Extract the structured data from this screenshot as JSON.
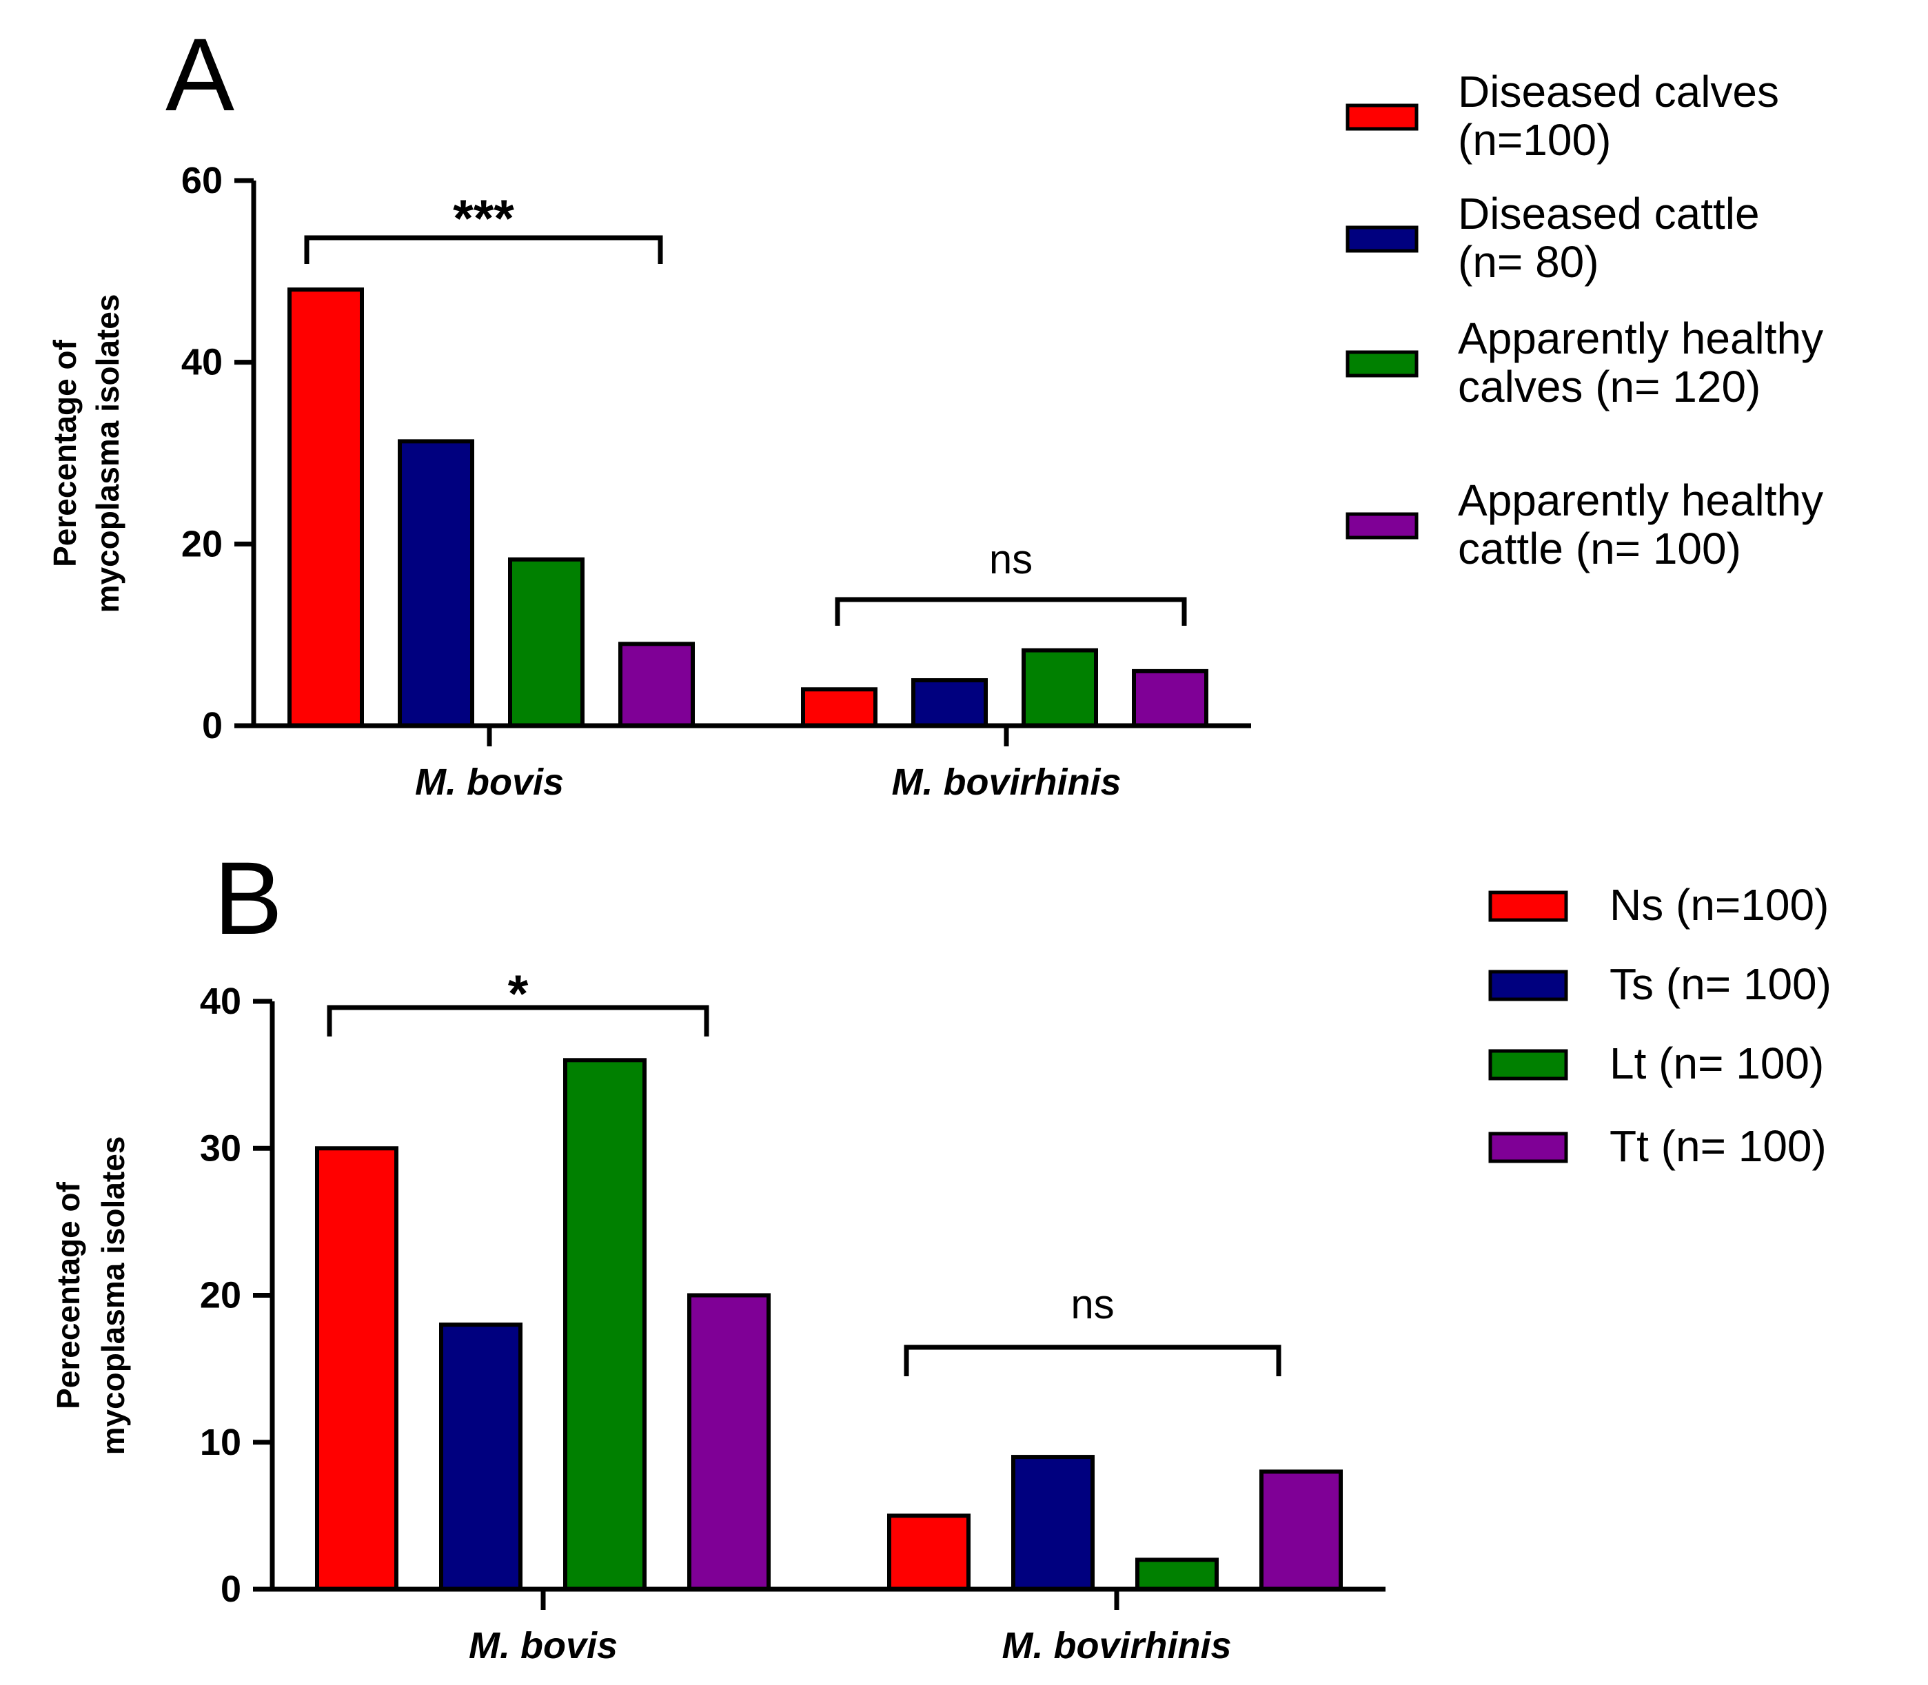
{
  "chart_data": [
    {
      "type": "bar",
      "panel": "A",
      "title": "",
      "xlabel": "",
      "ylabel": [
        "Perecentage of",
        "mycoplasma isolates"
      ],
      "ylim": [
        0,
        60
      ],
      "yticks": [
        0,
        20,
        40,
        60
      ],
      "categories": [
        "M. bovis",
        "M. bovirhinis"
      ],
      "series": [
        {
          "name": "Diseased calves (n=100)",
          "legend_lines": [
            "Diseased calves",
            "(n=100)"
          ],
          "color": "#ff0000",
          "values": [
            48,
            4
          ]
        },
        {
          "name": "Diseased cattle (n= 80)",
          "legend_lines": [
            "Diseased cattle",
            "(n= 80)"
          ],
          "color": "#00007f",
          "values": [
            31.3,
            5
          ]
        },
        {
          "name": "Apparently healthy calves (n= 120)",
          "legend_lines": [
            "Apparently healthy",
            "calves (n= 120)"
          ],
          "color": "#008000",
          "values": [
            18.3,
            8.3
          ]
        },
        {
          "name": "Apparently healthy cattle (n= 100)",
          "legend_lines": [
            "Apparently healthy",
            "cattle (n= 100)"
          ],
          "color": "#7f0096",
          "values": [
            9,
            6
          ]
        }
      ],
      "annotations": [
        {
          "category": "M. bovis",
          "text": "***"
        },
        {
          "category": "M. bovirhinis",
          "text": "ns"
        }
      ]
    },
    {
      "type": "bar",
      "panel": "B",
      "title": "",
      "xlabel": "",
      "ylabel": [
        "Perecentage of",
        "mycoplasma isolates"
      ],
      "ylim": [
        0,
        40
      ],
      "yticks": [
        0,
        10,
        20,
        30,
        40
      ],
      "categories": [
        "M. bovis",
        "M. bovirhinis"
      ],
      "series": [
        {
          "name": "Ns (n=100)",
          "legend_lines": [
            "Ns (n=100)"
          ],
          "color": "#ff0000",
          "values": [
            30,
            5
          ]
        },
        {
          "name": "Ts (n= 100)",
          "legend_lines": [
            "Ts (n= 100)"
          ],
          "color": "#00007f",
          "values": [
            18,
            9
          ]
        },
        {
          "name": "Lt (n= 100)",
          "legend_lines": [
            "Lt (n= 100)"
          ],
          "color": "#008000",
          "values": [
            36,
            2
          ]
        },
        {
          "name": "Tt (n= 100)",
          "legend_lines": [
            "Tt (n= 100)"
          ],
          "color": "#7f0096",
          "values": [
            20,
            8
          ]
        }
      ],
      "annotations": [
        {
          "category": "M. bovis",
          "text": "*"
        },
        {
          "category": "M. bovirhinis",
          "text": "ns"
        }
      ]
    }
  ]
}
